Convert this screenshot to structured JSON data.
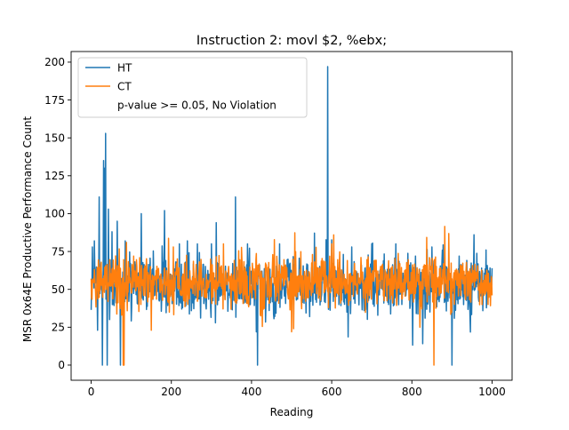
{
  "chart_data": {
    "type": "line",
    "title": "Instruction 2: movl $2, %ebx;",
    "xlabel": "Reading",
    "ylabel": "MSR 0x64E Productive Performance Count",
    "xlim": [
      -50,
      1050
    ],
    "ylim": [
      -10,
      207
    ],
    "xticks": [
      0,
      200,
      400,
      600,
      800,
      1000
    ],
    "yticks": [
      0,
      25,
      50,
      75,
      100,
      125,
      150,
      175,
      200
    ],
    "grid": false,
    "legend": {
      "placement": "top-left",
      "entries": [
        "HT",
        "CT",
        "p-value >= 0.05, No Violation"
      ]
    },
    "series": [
      {
        "name": "HT",
        "color": "#1f77b4",
        "n_points": 1001,
        "baseline": 53,
        "noise": 9,
        "spikes": [
          {
            "x": 3,
            "y": 78
          },
          {
            "x": 8,
            "y": 82
          },
          {
            "x": 16,
            "y": 23
          },
          {
            "x": 20,
            "y": 111
          },
          {
            "x": 28,
            "y": 0
          },
          {
            "x": 31,
            "y": 135
          },
          {
            "x": 33,
            "y": 130
          },
          {
            "x": 36,
            "y": 153
          },
          {
            "x": 40,
            "y": 0
          },
          {
            "x": 43,
            "y": 103
          },
          {
            "x": 46,
            "y": 30
          },
          {
            "x": 52,
            "y": 88
          },
          {
            "x": 65,
            "y": 95
          },
          {
            "x": 73,
            "y": 0
          },
          {
            "x": 85,
            "y": 82
          },
          {
            "x": 125,
            "y": 100
          },
          {
            "x": 183,
            "y": 102
          },
          {
            "x": 220,
            "y": 80
          },
          {
            "x": 240,
            "y": 82
          },
          {
            "x": 265,
            "y": 80
          },
          {
            "x": 300,
            "y": 80
          },
          {
            "x": 360,
            "y": 111
          },
          {
            "x": 390,
            "y": 80
          },
          {
            "x": 412,
            "y": 22
          },
          {
            "x": 415,
            "y": 0
          },
          {
            "x": 470,
            "y": 80
          },
          {
            "x": 590,
            "y": 197
          },
          {
            "x": 650,
            "y": 78
          },
          {
            "x": 700,
            "y": 80
          },
          {
            "x": 760,
            "y": 80
          },
          {
            "x": 850,
            "y": 78
          },
          {
            "x": 900,
            "y": 0
          },
          {
            "x": 955,
            "y": 86
          },
          {
            "x": 985,
            "y": 76
          }
        ]
      },
      {
        "name": "CT",
        "color": "#ff7f0e",
        "n_points": 1001,
        "baseline": 55,
        "noise": 8,
        "spikes": [
          {
            "x": 76,
            "y": 33
          },
          {
            "x": 80,
            "y": 0
          },
          {
            "x": 82,
            "y": 0
          },
          {
            "x": 88,
            "y": 81
          },
          {
            "x": 150,
            "y": 23
          },
          {
            "x": 205,
            "y": 78
          },
          {
            "x": 330,
            "y": 80
          },
          {
            "x": 500,
            "y": 22
          },
          {
            "x": 505,
            "y": 24
          },
          {
            "x": 600,
            "y": 80
          },
          {
            "x": 820,
            "y": 25
          },
          {
            "x": 855,
            "y": 0
          },
          {
            "x": 990,
            "y": 40
          }
        ]
      }
    ]
  }
}
